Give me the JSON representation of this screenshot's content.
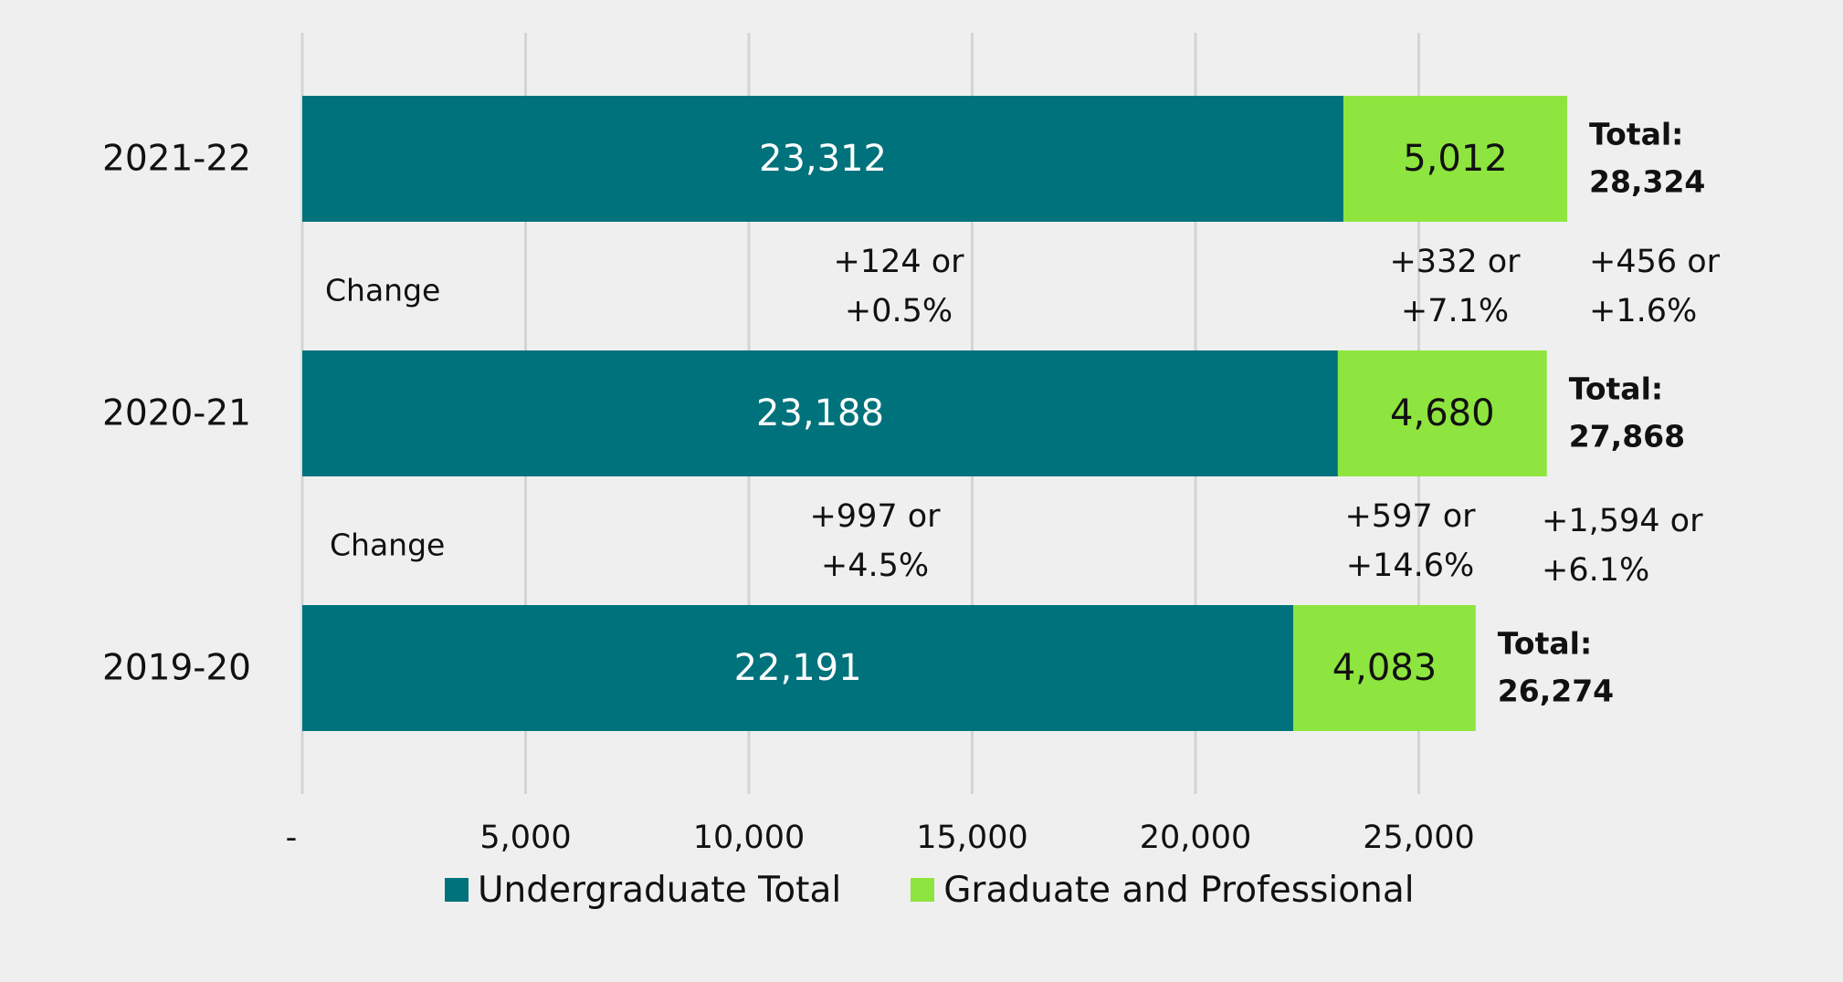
{
  "chart_data": {
    "type": "bar",
    "orientation": "horizontal",
    "stacked": true,
    "categories": [
      "2021-22",
      "2020-21",
      "2019-20"
    ],
    "series": [
      {
        "name": "Undergraduate Total",
        "color": "#00727c",
        "values": [
          23312,
          23188,
          22191
        ],
        "labels": [
          "23,312",
          "23,188",
          "22,191"
        ]
      },
      {
        "name": "Graduate and Professional",
        "color": "#8ee53f",
        "values": [
          5012,
          4680,
          4083
        ],
        "labels": [
          "5,012",
          "4,680",
          "4,083"
        ]
      }
    ],
    "totals": [
      {
        "label": "Total:",
        "value": "28,324"
      },
      {
        "label": "Total:",
        "value": "27,868"
      },
      {
        "label": "Total:",
        "value": "26,274"
      }
    ],
    "changes": [
      {
        "label": "Change",
        "undergraduate": [
          "+124 or",
          "+0.5%"
        ],
        "graduate": [
          "+332 or",
          "+7.1%"
        ],
        "total": [
          "+456 or",
          "+1.6%"
        ]
      },
      {
        "label": "Change",
        "undergraduate": [
          "+997 or",
          "+4.5%"
        ],
        "graduate": [
          "+597 or",
          "+14.6%"
        ],
        "total": [
          "+1,594 or",
          "+6.1%"
        ]
      }
    ],
    "xlim": [
      0,
      30000
    ],
    "xticks": [
      0,
      5000,
      10000,
      15000,
      20000,
      25000
    ],
    "xtick_labels": [
      "-",
      "5,000",
      "10,000",
      "15,000",
      "20,000",
      "25,000"
    ],
    "grid": true,
    "legend_position": "bottom"
  }
}
